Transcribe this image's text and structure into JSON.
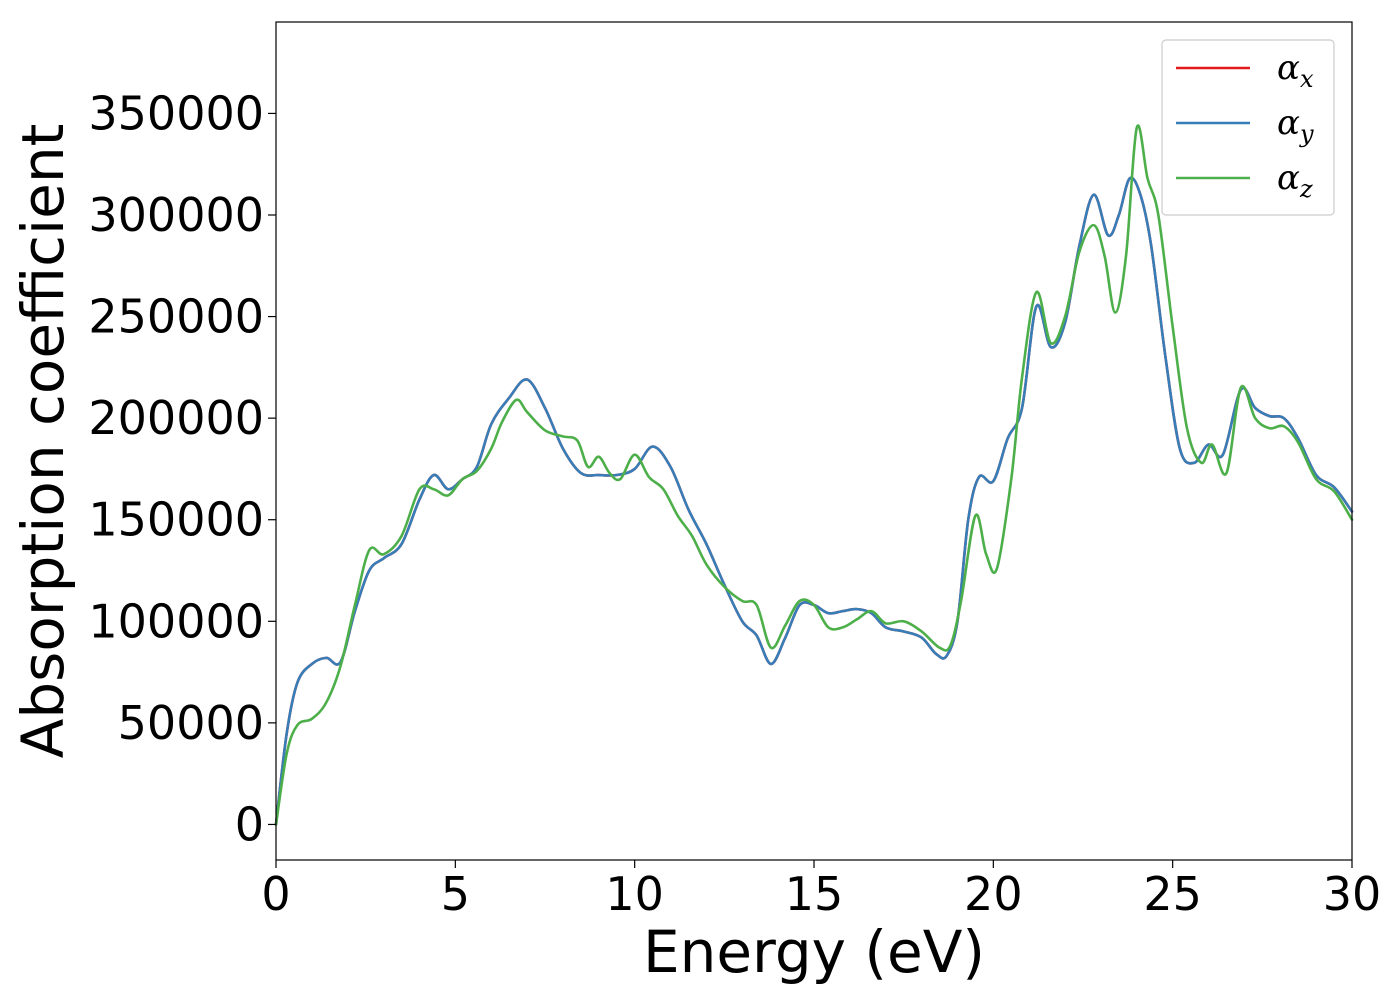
{
  "chart_data": {
    "type": "line",
    "title": "",
    "xlabel": "Energy (eV)",
    "ylabel": "Absorption coefficient",
    "xlim": [
      0,
      30
    ],
    "ylim": [
      -17500,
      395000
    ],
    "xticks": [
      0,
      5,
      10,
      15,
      20,
      25,
      30
    ],
    "yticks": [
      0,
      50000,
      100000,
      150000,
      200000,
      250000,
      300000,
      350000
    ],
    "grid": false,
    "legend_position": "top-right",
    "series": [
      {
        "name": "α",
        "subscript": "x",
        "color": "#e41a1c",
        "x": [
          0,
          0.3,
          0.6,
          1.0,
          1.4,
          1.8,
          2.2,
          2.6,
          3.0,
          3.5,
          4.0,
          4.4,
          4.8,
          5.2,
          5.6,
          6.0,
          6.5,
          7.0,
          7.5,
          8.0,
          8.5,
          9.0,
          9.5,
          10.0,
          10.5,
          11.0,
          11.5,
          12.0,
          12.5,
          13.0,
          13.4,
          13.8,
          14.2,
          14.6,
          15.0,
          15.4,
          15.8,
          16.2,
          16.6,
          17.0,
          17.5,
          18.0,
          18.4,
          18.7,
          19.0,
          19.3,
          19.6,
          20.0,
          20.4,
          20.8,
          21.2,
          21.6,
          22.0,
          22.4,
          22.8,
          23.2,
          23.5,
          23.8,
          24.1,
          24.4,
          24.8,
          25.2,
          25.6,
          26.0,
          26.4,
          26.9,
          27.3,
          27.7,
          28.1,
          28.5,
          29.0,
          29.5,
          30.0
        ],
        "values": [
          0,
          45000,
          70000,
          79000,
          82000,
          80000,
          105000,
          125000,
          131000,
          138000,
          160000,
          172000,
          165000,
          170000,
          176000,
          197000,
          210000,
          219000,
          205000,
          185000,
          173000,
          172000,
          172000,
          175000,
          186000,
          176000,
          155000,
          138000,
          118000,
          100000,
          93000,
          79000,
          92000,
          108000,
          108000,
          104000,
          105000,
          106000,
          104000,
          97000,
          95000,
          92000,
          84000,
          83000,
          100000,
          150000,
          171000,
          169000,
          190000,
          205000,
          255000,
          235000,
          247000,
          285000,
          310000,
          290000,
          300000,
          318000,
          310000,
          285000,
          230000,
          185000,
          178000,
          187000,
          182000,
          214000,
          205000,
          201000,
          200000,
          190000,
          172000,
          166000,
          154000
        ]
      },
      {
        "name": "α",
        "subscript": "y",
        "color": "#377eb8",
        "x": [
          0,
          0.3,
          0.6,
          1.0,
          1.4,
          1.8,
          2.2,
          2.6,
          3.0,
          3.5,
          4.0,
          4.4,
          4.8,
          5.2,
          5.6,
          6.0,
          6.5,
          7.0,
          7.5,
          8.0,
          8.5,
          9.0,
          9.5,
          10.0,
          10.5,
          11.0,
          11.5,
          12.0,
          12.5,
          13.0,
          13.4,
          13.8,
          14.2,
          14.6,
          15.0,
          15.4,
          15.8,
          16.2,
          16.6,
          17.0,
          17.5,
          18.0,
          18.4,
          18.7,
          19.0,
          19.3,
          19.6,
          20.0,
          20.4,
          20.8,
          21.2,
          21.6,
          22.0,
          22.4,
          22.8,
          23.2,
          23.5,
          23.8,
          24.1,
          24.4,
          24.8,
          25.2,
          25.6,
          26.0,
          26.4,
          26.9,
          27.3,
          27.7,
          28.1,
          28.5,
          29.0,
          29.5,
          30.0
        ],
        "values": [
          0,
          45000,
          70000,
          79000,
          82000,
          80000,
          105000,
          125000,
          131000,
          138000,
          160000,
          172000,
          165000,
          170000,
          176000,
          197000,
          210000,
          219000,
          205000,
          185000,
          173000,
          172000,
          172000,
          175000,
          186000,
          176000,
          155000,
          138000,
          118000,
          100000,
          93000,
          79000,
          92000,
          108000,
          108000,
          104000,
          105000,
          106000,
          104000,
          97000,
          95000,
          92000,
          84000,
          83000,
          100000,
          150000,
          171000,
          169000,
          190000,
          205000,
          255000,
          235000,
          247000,
          285000,
          310000,
          290000,
          300000,
          318000,
          310000,
          285000,
          230000,
          185000,
          178000,
          187000,
          182000,
          214000,
          205000,
          201000,
          200000,
          190000,
          172000,
          166000,
          154000
        ]
      },
      {
        "name": "α",
        "subscript": "z",
        "color": "#4daf4a",
        "x": [
          0,
          0.3,
          0.6,
          1.0,
          1.4,
          1.8,
          2.2,
          2.6,
          3.0,
          3.5,
          4.0,
          4.4,
          4.8,
          5.2,
          5.6,
          6.0,
          6.3,
          6.7,
          7.0,
          7.5,
          8.0,
          8.4,
          8.7,
          9.0,
          9.3,
          9.6,
          10.0,
          10.4,
          10.8,
          11.2,
          11.6,
          12.0,
          12.5,
          13.0,
          13.4,
          13.8,
          14.2,
          14.6,
          15.0,
          15.4,
          15.8,
          16.2,
          16.6,
          17.0,
          17.5,
          18.0,
          18.5,
          18.8,
          19.1,
          19.5,
          19.8,
          20.1,
          20.5,
          20.8,
          21.2,
          21.6,
          22.0,
          22.4,
          22.8,
          23.1,
          23.4,
          23.7,
          24.0,
          24.3,
          24.6,
          25.0,
          25.4,
          25.8,
          26.1,
          26.5,
          26.9,
          27.3,
          27.7,
          28.1,
          28.5,
          29.0,
          29.5,
          30.0
        ],
        "values": [
          0,
          35000,
          49000,
          52000,
          60000,
          78000,
          108000,
          135000,
          133000,
          142000,
          165000,
          165000,
          162000,
          170000,
          174000,
          185000,
          198000,
          209000,
          203000,
          194000,
          191000,
          189000,
          176000,
          181000,
          173000,
          170000,
          182000,
          171000,
          165000,
          152000,
          142000,
          128000,
          117000,
          110000,
          108000,
          87000,
          98000,
          110000,
          108000,
          97000,
          97000,
          101000,
          105000,
          99000,
          100000,
          95000,
          87000,
          88000,
          110000,
          152000,
          133000,
          126000,
          170000,
          220000,
          262000,
          237000,
          250000,
          282000,
          295000,
          280000,
          252000,
          280000,
          343000,
          318000,
          300000,
          245000,
          195000,
          178000,
          187000,
          173000,
          215000,
          200000,
          195000,
          196000,
          188000,
          170000,
          164000,
          150000
        ]
      }
    ]
  }
}
